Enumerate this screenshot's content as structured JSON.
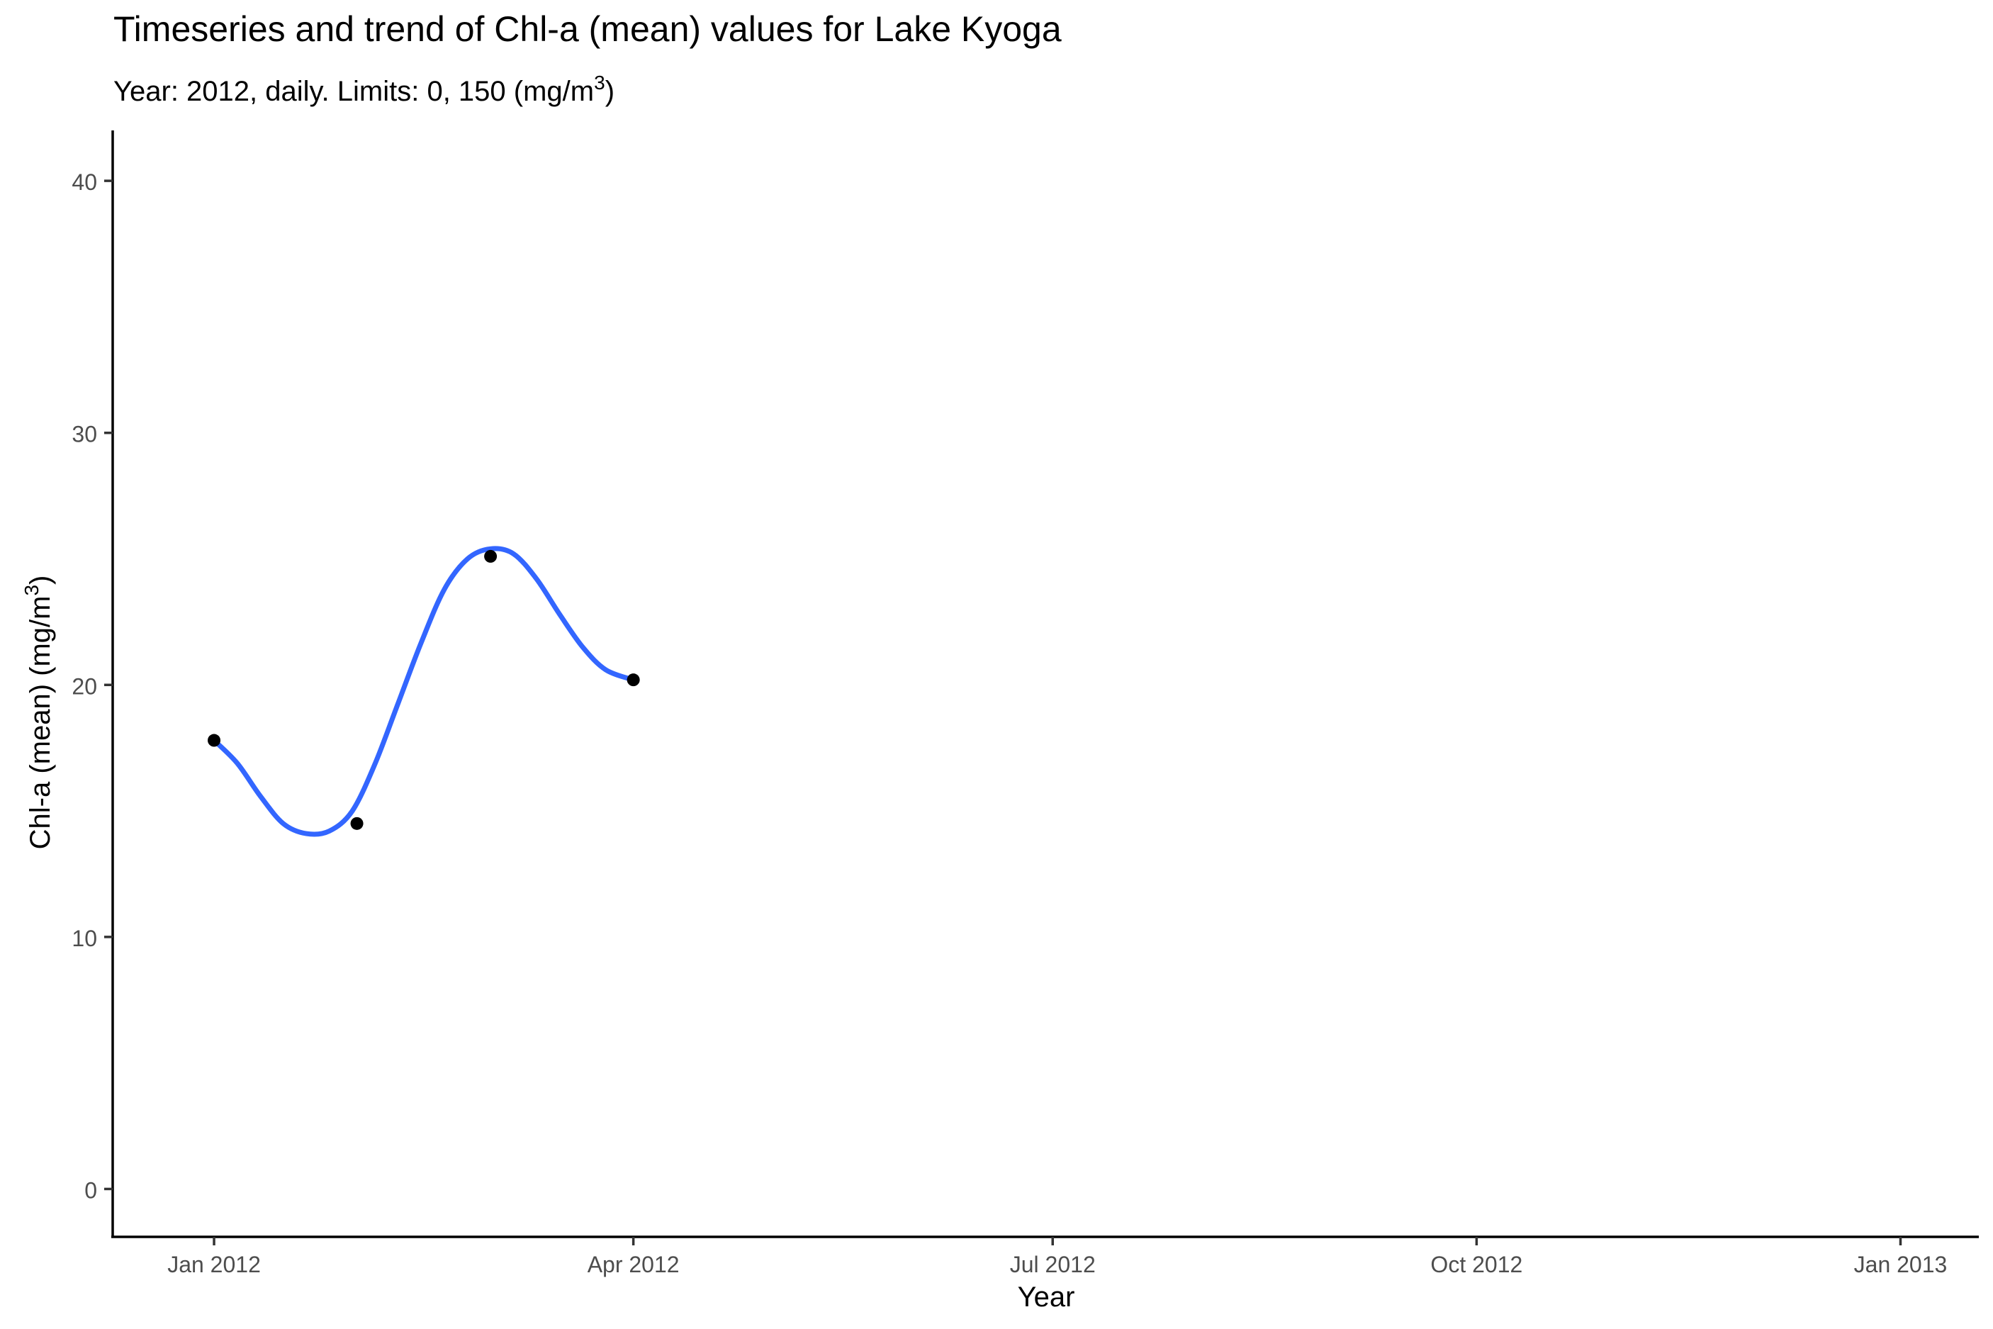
{
  "chart_data": {
    "type": "line",
    "title": "Timeseries and trend of Chl-a (mean) values for Lake Kyoga",
    "subtitle": {
      "prefix": "Year: 2012, daily. Limits: 0, 150 (mg/m",
      "superscript": "3",
      "suffix": ")"
    },
    "xlabel": "Year",
    "ylabel": {
      "prefix": "Chl-a (mean) (mg/m",
      "superscript": "3",
      "suffix": ")"
    },
    "x_type": "date",
    "xlim": [
      "2011-12-10",
      "2013-01-18"
    ],
    "ylim": [
      -1.9,
      42
    ],
    "x_ticks": [
      {
        "value": "2012-01-01",
        "label": "Jan 2012"
      },
      {
        "value": "2012-04-01",
        "label": "Apr 2012"
      },
      {
        "value": "2012-07-01",
        "label": "Jul 2012"
      },
      {
        "value": "2012-10-01",
        "label": "Oct 2012"
      },
      {
        "value": "2013-01-01",
        "label": "Jan 2013"
      }
    ],
    "y_ticks": [
      {
        "value": 0,
        "label": "0"
      },
      {
        "value": 10,
        "label": "10"
      },
      {
        "value": 20,
        "label": "20"
      },
      {
        "value": 30,
        "label": "30"
      },
      {
        "value": 40,
        "label": "40"
      }
    ],
    "grid": false,
    "series": [
      {
        "kind": "points",
        "color": "#000000",
        "x": [
          "2012-01-01",
          "2012-02-01",
          "2012-03-01",
          "2012-04-01"
        ],
        "y": [
          17.8,
          14.5,
          25.1,
          20.2
        ]
      },
      {
        "kind": "trend",
        "color": "#3366ff",
        "x": [
          "2012-01-01",
          "2012-01-06",
          "2012-01-11",
          "2012-01-16",
          "2012-01-21",
          "2012-01-26",
          "2012-01-31",
          "2012-02-05",
          "2012-02-10",
          "2012-02-15",
          "2012-02-20",
          "2012-02-25",
          "2012-03-01",
          "2012-03-06",
          "2012-03-11",
          "2012-03-16",
          "2012-03-21",
          "2012-03-26",
          "2012-04-01"
        ],
        "y": [
          17.8,
          16.9,
          15.6,
          14.5,
          14.1,
          14.2,
          15.0,
          16.9,
          19.3,
          21.7,
          23.8,
          25.0,
          25.4,
          25.2,
          24.2,
          22.8,
          21.5,
          20.6,
          20.2
        ]
      }
    ]
  }
}
